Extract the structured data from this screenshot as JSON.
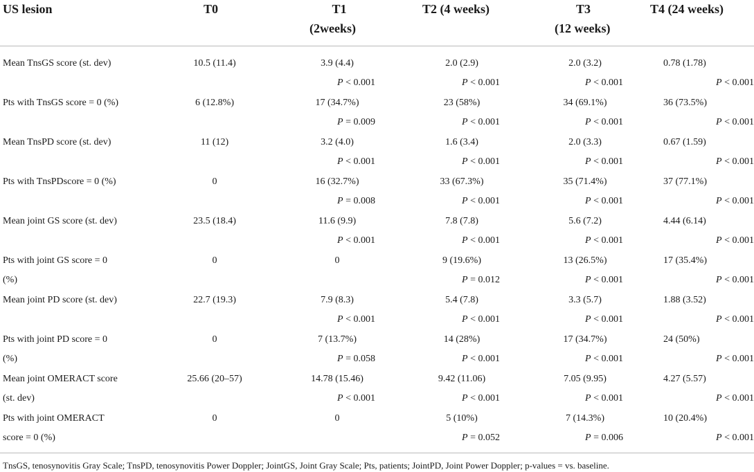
{
  "header": {
    "col0": "US lesion",
    "col1": "T0",
    "col2_line1": "T1",
    "col2_line2": "(2weeks)",
    "col3": "T2 (4 weeks)",
    "col4_line1": "T3",
    "col4_line2": "(12 weeks)",
    "col5": "T4 (24 weeks)"
  },
  "rows": [
    {
      "label1": "Mean TnsGS score (st. dev)",
      "label2": "",
      "t0": "10.5 (11.4)",
      "t1": "3.9 (4.4)",
      "t1p": "< 0.001",
      "t1op": "P",
      "t2": "2.0 (2.9)",
      "t2p": "< 0.001",
      "t2op": "P",
      "t3": "2.0 (3.2)",
      "t3p": "< 0.001",
      "t3op": "P",
      "t4": "0.78 (1.78)",
      "t4p": "< 0.001",
      "t4op": "P"
    },
    {
      "label1": "Pts with TnsGS score = 0 (%)",
      "label2": "",
      "t0": "6 (12.8%)",
      "t1": "17 (34.7%)",
      "t1p": "= 0.009",
      "t1op": "P",
      "t2": "23 (58%)",
      "t2p": "< 0.001",
      "t2op": "P",
      "t3": "34 (69.1%)",
      "t3p": "< 0.001",
      "t3op": "P",
      "t4": "36 (73.5%)",
      "t4p": "< 0.001",
      "t4op": "P"
    },
    {
      "label1": "Mean TnsPD score (st. dev)",
      "label2": "",
      "t0": "11 (12)",
      "t1": "3.2 (4.0)",
      "t1p": "< 0.001",
      "t1op": "P",
      "t2": "1.6 (3.4)",
      "t2p": "< 0.001",
      "t2op": "P",
      "t3": "2.0 (3.3)",
      "t3p": "< 0.001",
      "t3op": "P",
      "t4": "0.67 (1.59)",
      "t4p": "< 0.001",
      "t4op": "P"
    },
    {
      "label1": "Pts with TnsPDscore = 0 (%)",
      "label2": "",
      "t0": "0",
      "t1": "16 (32.7%)",
      "t1p": "= 0.008",
      "t1op": "P",
      "t2": "33 (67.3%)",
      "t2p": "< 0.001",
      "t2op": "P",
      "t3": "35 (71.4%)",
      "t3p": "< 0.001",
      "t3op": "P",
      "t4": "37 (77.1%)",
      "t4p": "< 0.001",
      "t4op": "P"
    },
    {
      "label1": "Mean joint GS score (st. dev)",
      "label2": "",
      "t0": "23.5 (18.4)",
      "t1": "11.6 (9.9)",
      "t1p": "< 0.001",
      "t1op": "P",
      "t2": "7.8 (7.8)",
      "t2p": "< 0.001",
      "t2op": "P",
      "t3": "5.6 (7.2)",
      "t3p": "< 0.001",
      "t3op": "P",
      "t4": "4.44 (6.14)",
      "t4p": "< 0.001",
      "t4op": "P"
    },
    {
      "label1": "Pts with joint GS score = 0",
      "label2": "(%)",
      "t0": "0",
      "t1": "0",
      "t1p": "",
      "t1op": "",
      "t2": "9 (19.6%)",
      "t2p": "= 0.012",
      "t2op": "P",
      "t3": "13 (26.5%)",
      "t3p": "< 0.001",
      "t3op": "P",
      "t4": "17 (35.4%)",
      "t4p": "< 0.001",
      "t4op": "P"
    },
    {
      "label1": "Mean joint PD score (st. dev)",
      "label2": "",
      "t0": "22.7 (19.3)",
      "t1": "7.9 (8.3)",
      "t1p": "< 0.001",
      "t1op": "P",
      "t2": "5.4 (7.8)",
      "t2p": "< 0.001",
      "t2op": "P",
      "t3": "3.3 (5.7)",
      "t3p": "< 0.001",
      "t3op": "P",
      "t4": "1.88 (3.52)",
      "t4p": "< 0.001",
      "t4op": "P"
    },
    {
      "label1": "Pts with joint PD score = 0",
      "label2": "(%)",
      "t0": "0",
      "t1": "7 (13.7%)",
      "t1p": "= 0.058",
      "t1op": "P",
      "t2": "14 (28%)",
      "t2p": "< 0.001",
      "t2op": "P",
      "t3": "17 (34.7%)",
      "t3p": "< 0.001",
      "t3op": "P",
      "t4": "24 (50%)",
      "t4p": "< 0.001",
      "t4op": "P"
    },
    {
      "label1": "Mean joint OMERACT score",
      "label2": "(st. dev)",
      "t0": "25.66 (20–57)",
      "t1": "14.78 (15.46)",
      "t1p": "< 0.001",
      "t1op": "P",
      "t2": "9.42 (11.06)",
      "t2p": "< 0.001",
      "t2op": "P",
      "t3": "7.05 (9.95)",
      "t3p": "< 0.001",
      "t3op": "P",
      "t4": "4.27 (5.57)",
      "t4p": "< 0.001",
      "t4op": "P"
    },
    {
      "label1": "Pts with joint OMERACT",
      "label2": "score = 0 (%)",
      "t0": "0",
      "t1": "0",
      "t1p": "",
      "t1op": "",
      "t2": "5 (10%)",
      "t2p": "= 0.052",
      "t2op": "P",
      "t3": "7 (14.3%)",
      "t3p": "= 0.006",
      "t3op": "P",
      "t4": "10 (20.4%)",
      "t4p": "< 0.001",
      "t4op": "P"
    }
  ],
  "footnote": "TnsGS, tenosynovitis Gray Scale; TnsPD, tenosynovitis Power Doppler; JointGS, Joint Gray Scale; Pts, patients; JointPD, Joint Power Doppler; p-values = vs. baseline."
}
